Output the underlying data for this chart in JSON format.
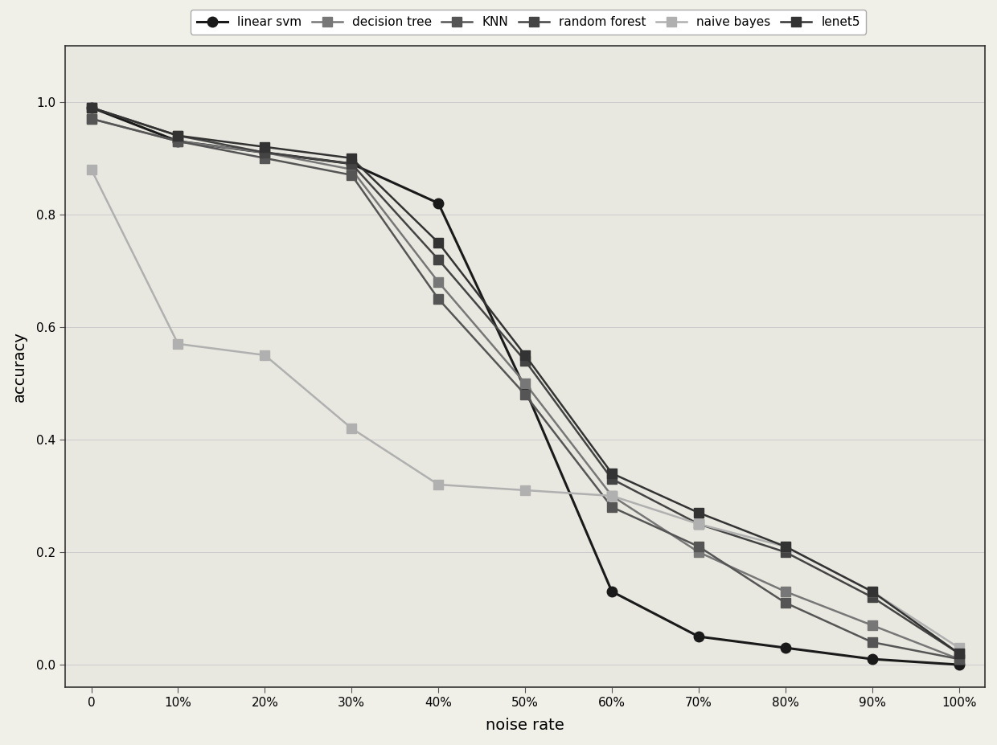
{
  "x_labels": [
    "0",
    "10%",
    "20%",
    "30%",
    "40%",
    "50%",
    "60%",
    "70%",
    "80%",
    "90%",
    "100%"
  ],
  "x_values": [
    0,
    0.1,
    0.2,
    0.3,
    0.4,
    0.5,
    0.6,
    0.7,
    0.8,
    0.9,
    1.0
  ],
  "series": [
    {
      "name": "linear svm",
      "color": "#1a1a1a",
      "linestyle": "-",
      "marker": "o",
      "markersize": 9,
      "linewidth": 2.2,
      "markerfacecolor": "#1a1a1a",
      "values": [
        0.99,
        0.93,
        0.91,
        0.89,
        0.82,
        0.49,
        0.13,
        0.05,
        0.03,
        0.01,
        0.0
      ]
    },
    {
      "name": "decision tree",
      "color": "#777777",
      "linestyle": "-",
      "marker": "s",
      "markersize": 8,
      "linewidth": 1.8,
      "markerfacecolor": "#777777",
      "values": [
        0.97,
        0.93,
        0.91,
        0.88,
        0.68,
        0.5,
        0.3,
        0.2,
        0.13,
        0.07,
        0.01
      ]
    },
    {
      "name": "KNN",
      "color": "#555555",
      "linestyle": "-",
      "marker": "s",
      "markersize": 8,
      "linewidth": 1.8,
      "markerfacecolor": "#555555",
      "values": [
        0.97,
        0.93,
        0.9,
        0.87,
        0.65,
        0.48,
        0.28,
        0.21,
        0.11,
        0.04,
        0.01
      ]
    },
    {
      "name": "random forest",
      "color": "#444444",
      "linestyle": "-",
      "marker": "s",
      "markersize": 8,
      "linewidth": 1.8,
      "markerfacecolor": "#444444",
      "values": [
        0.99,
        0.94,
        0.91,
        0.89,
        0.72,
        0.54,
        0.33,
        0.25,
        0.2,
        0.12,
        0.02
      ]
    },
    {
      "name": "naive bayes",
      "color": "#b0b0b0",
      "linestyle": "-",
      "marker": "s",
      "markersize": 8,
      "linewidth": 1.8,
      "markerfacecolor": "#b0b0b0",
      "values": [
        0.88,
        0.57,
        0.55,
        0.42,
        0.32,
        0.31,
        0.3,
        0.25,
        0.21,
        0.13,
        0.03
      ]
    },
    {
      "name": "lenet5",
      "color": "#333333",
      "linestyle": "-",
      "marker": "s",
      "markersize": 8,
      "linewidth": 1.8,
      "markerfacecolor": "#333333",
      "values": [
        0.99,
        0.94,
        0.92,
        0.9,
        0.75,
        0.55,
        0.34,
        0.27,
        0.21,
        0.13,
        0.02
      ]
    }
  ],
  "xlabel": "noise rate",
  "ylabel": "accuracy",
  "ylim": [
    -0.04,
    1.1
  ],
  "xlim": [
    -0.03,
    1.03
  ],
  "background_color": "#f0f0e8",
  "plot_bg_color": "#e8e8e0",
  "legend_fontsize": 11,
  "axis_label_fontsize": 14,
  "tick_fontsize": 11,
  "title": ""
}
